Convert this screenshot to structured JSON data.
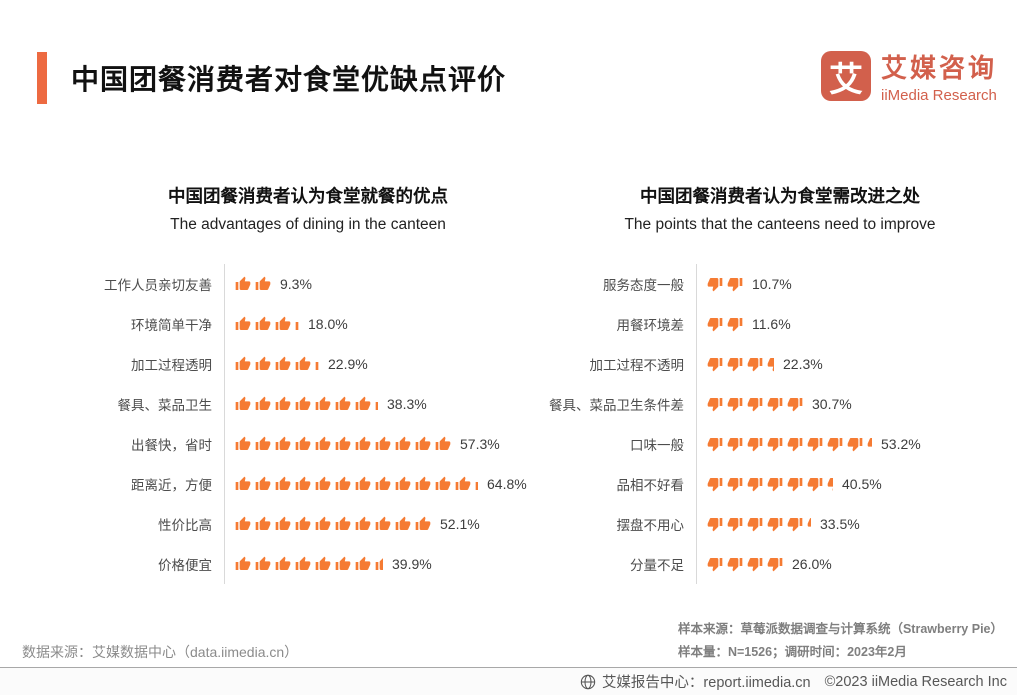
{
  "header": {
    "title": "中国团餐消费者对食堂优缺点评价",
    "logo": {
      "mark": "艾",
      "name_zh": "艾媒咨询",
      "name_en": "iiMedia Research"
    }
  },
  "colors": {
    "accent": "#ed6a41",
    "icon_orange": "#f57b33",
    "logo_red": "#d2604c"
  },
  "chart_data": [
    {
      "type": "bar",
      "orientation": "horizontal",
      "pictogram_icon": "thumb-up",
      "unit": "%",
      "title": "中国团餐消费者认为食堂就餐的优点",
      "subtitle": "The advantages of dining in the canteen",
      "categories": [
        "工作人员亲切友善",
        "环境简单干净",
        "加工过程透明",
        "餐具、菜品卫生",
        "出餐快，省时",
        "距离近，方便",
        "性价比高",
        "价格便宜"
      ],
      "values": [
        9.3,
        18.0,
        22.9,
        38.3,
        57.3,
        64.8,
        52.1,
        39.9
      ],
      "value_labels": [
        "9.3%",
        "18.0%",
        "22.9%",
        "38.3%",
        "57.3%",
        "64.8%",
        "52.1%",
        "39.9%"
      ],
      "icons": [
        {
          "full": 2,
          "partial": 0
        },
        {
          "full": 3,
          "partial": 0.22
        },
        {
          "full": 4,
          "partial": 0.25
        },
        {
          "full": 7,
          "partial": 0.2
        },
        {
          "full": 11,
          "partial": 0
        },
        {
          "full": 12,
          "partial": 0.2
        },
        {
          "full": 10,
          "partial": 0
        },
        {
          "full": 7,
          "partial": 0.5
        }
      ]
    },
    {
      "type": "bar",
      "orientation": "horizontal",
      "pictogram_icon": "thumb-down",
      "unit": "%",
      "title": "中国团餐消费者认为食堂需改进之处",
      "subtitle": "The points that the canteens need to improve",
      "categories": [
        "服务态度一般",
        "用餐环境差",
        "加工过程不透明",
        "餐具、菜品卫生条件差",
        "口味一般",
        "品相不好看",
        "摆盘不用心",
        "分量不足"
      ],
      "values": [
        10.7,
        11.6,
        22.3,
        30.7,
        53.2,
        40.5,
        33.5,
        26.0
      ],
      "value_labels": [
        "10.7%",
        "11.6%",
        "22.3%",
        "30.7%",
        "53.2%",
        "40.5%",
        "33.5%",
        "26.0%"
      ],
      "icons": [
        {
          "full": 2,
          "partial": 0
        },
        {
          "full": 2,
          "partial": 0
        },
        {
          "full": 3,
          "partial": 0.45
        },
        {
          "full": 5,
          "partial": 0
        },
        {
          "full": 8,
          "partial": 0.3
        },
        {
          "full": 6,
          "partial": 0.35
        },
        {
          "full": 5,
          "partial": 0.22
        },
        {
          "full": 4,
          "partial": 0
        }
      ]
    }
  ],
  "footer": {
    "data_source": "数据来源：艾媒数据中心（data.iimedia.cn）",
    "sample_source": "样本来源：草莓派数据调查与计算系统（Strawberry Pie）",
    "sample_size": "样本量：N=1526；调研时间：2023年2月",
    "report_center": "艾媒报告中心：report.iimedia.cn",
    "copyright": "©2023  iiMedia Research  Inc"
  }
}
